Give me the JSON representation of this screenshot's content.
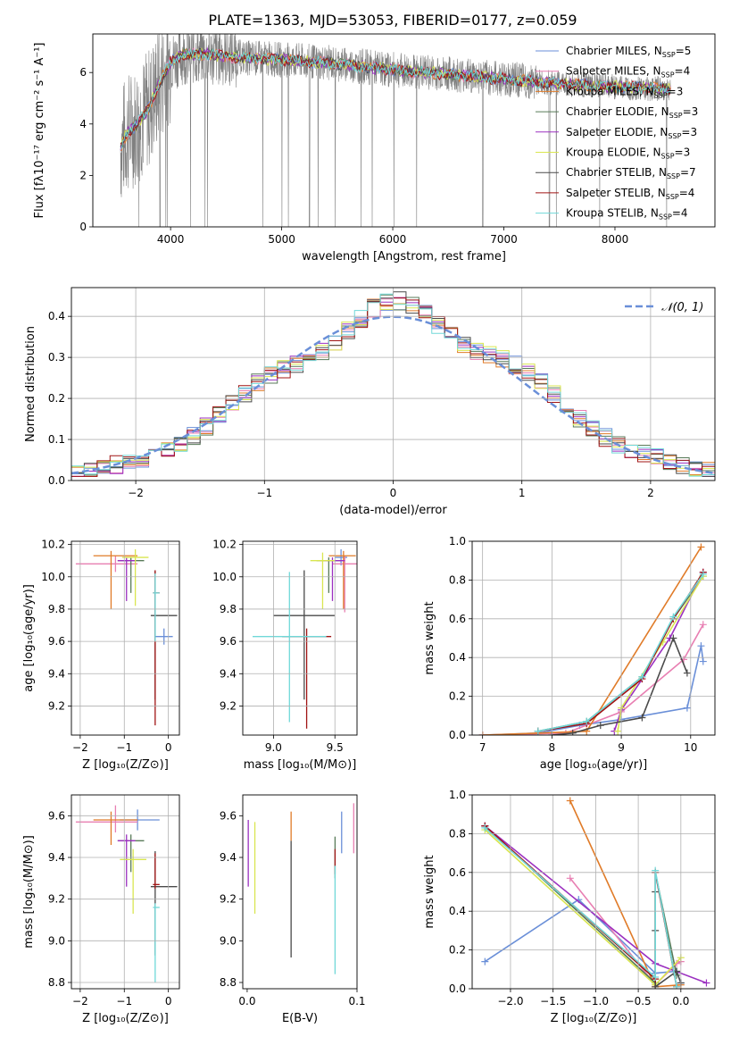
{
  "figure": {
    "title": "PLATE=1363, MJD=53053, FIBERID=0177, z=0.059"
  },
  "colors": {
    "Chabrier MILES": "#6a8fd8",
    "Salpeter MILES": "#e87fb2",
    "Kroupa MILES": "#e07b28",
    "Chabrier ELODIE": "#587a58",
    "Salpeter ELODIE": "#9b30c0",
    "Kroupa ELODIE": "#d9e650",
    "Chabrier STELIB": "#4a4a4a",
    "Salpeter STELIB": "#a01414",
    "Kroupa STELIB": "#70d8d8",
    "data": "#808080",
    "gaussian": "#6a8fd8"
  },
  "chart_data": [
    {
      "id": "spectrum",
      "type": "line",
      "xlabel": "wavelength [Angstrom, rest frame]",
      "ylabel": "Flux [fλ10⁻¹⁷ erg cm⁻² s⁻¹ A⁻¹]",
      "xlim": [
        3300,
        8900
      ],
      "ylim": [
        0,
        7.5
      ],
      "xticks": [
        4000,
        5000,
        6000,
        7000,
        8000
      ],
      "yticks": [
        0,
        2,
        4,
        6
      ],
      "legend_position": "top-right",
      "legend": [
        {
          "label": "Chabrier MILES, N",
          "sub": "SSP",
          "eq": "=5"
        },
        {
          "label": "Salpeter MILES, N",
          "sub": "SSP",
          "eq": "=4"
        },
        {
          "label": "Kroupa MILES, N",
          "sub": "SSP",
          "eq": "=3"
        },
        {
          "label": "Chabrier ELODIE, N",
          "sub": "SSP",
          "eq": "=3"
        },
        {
          "label": "Salpeter ELODIE, N",
          "sub": "SSP",
          "eq": "=3"
        },
        {
          "label": "Kroupa ELODIE, N",
          "sub": "SSP",
          "eq": "=3"
        },
        {
          "label": "Chabrier STELIB, N",
          "sub": "SSP",
          "eq": "=7"
        },
        {
          "label": "Salpeter STELIB, N",
          "sub": "SSP",
          "eq": "=4"
        },
        {
          "label": "Kroupa STELIB, N",
          "sub": "SSP",
          "eq": "=4"
        }
      ],
      "model_continuum": [
        [
          3550,
          3.1
        ],
        [
          3600,
          3.6
        ],
        [
          3700,
          4.0
        ],
        [
          3800,
          4.6
        ],
        [
          3900,
          5.6
        ],
        [
          4000,
          6.4
        ],
        [
          4100,
          6.7
        ],
        [
          4300,
          6.7
        ],
        [
          4600,
          6.6
        ],
        [
          5000,
          6.5
        ],
        [
          5500,
          6.35
        ],
        [
          6000,
          6.1
        ],
        [
          6500,
          5.95
        ],
        [
          7000,
          5.75
        ],
        [
          7400,
          5.6
        ],
        [
          8000,
          5.45
        ],
        [
          8500,
          5.35
        ]
      ],
      "data_range": [
        3550,
        8500
      ]
    },
    {
      "id": "residuals",
      "type": "histogram",
      "xlabel": "(data-model)/error",
      "ylabel": "Normed distribution",
      "xlim": [
        -2.5,
        2.5
      ],
      "ylim": [
        0,
        0.47
      ],
      "xticks": [
        -2,
        -1,
        0,
        1,
        2
      ],
      "yticks": [
        0.0,
        0.1,
        0.2,
        0.3,
        0.4
      ],
      "grid": true,
      "legend_position": "top-right",
      "gaussian_label": "𝒩(0, 1)",
      "bin_width": 0.1
    },
    {
      "id": "age-vs-Z",
      "type": "errorbar",
      "xlabel": "Z [log₁₀(Z/Z⊙)]",
      "ylabel": "age  [log₁₀(age/yr)]",
      "xlim": [
        -2.2,
        0.25
      ],
      "ylim": [
        9.02,
        10.22
      ],
      "xticks": [
        -2,
        -1,
        0
      ],
      "yticks": [
        9.2,
        9.4,
        9.6,
        9.8,
        10.0,
        10.2
      ],
      "grid": true,
      "points": [
        {
          "model": "Chabrier MILES",
          "x": -0.1,
          "xerr": [
            0.2,
            0.2
          ],
          "y": 9.63,
          "yerr": [
            0.05,
            0.05
          ]
        },
        {
          "model": "Salpeter MILES",
          "x": -1.2,
          "xerr": [
            0.9,
            0.5
          ],
          "y": 10.08,
          "yerr": [
            0.05,
            0.05
          ]
        },
        {
          "model": "Kroupa MILES",
          "x": -1.3,
          "xerr": [
            0.4,
            0.6
          ],
          "y": 10.13,
          "yerr": [
            0.33,
            0.03
          ]
        },
        {
          "model": "Chabrier ELODIE",
          "x": -0.85,
          "xerr": [
            0.3,
            0.3
          ],
          "y": 10.1,
          "yerr": [
            0.2,
            0.02
          ]
        },
        {
          "model": "Salpeter ELODIE",
          "x": -0.95,
          "xerr": [
            0.2,
            0.2
          ],
          "y": 10.1,
          "yerr": [
            0.25,
            0.02
          ]
        },
        {
          "model": "Kroupa ELODIE",
          "x": -0.75,
          "xerr": [
            0.3,
            0.3
          ],
          "y": 10.12,
          "yerr": [
            0.3,
            0.05
          ]
        },
        {
          "model": "Chabrier STELIB",
          "x": -0.3,
          "xerr": [
            0.1,
            0.5
          ],
          "y": 9.76,
          "yerr": [
            0.52,
            0.28
          ]
        },
        {
          "model": "Salpeter STELIB",
          "x": -0.3,
          "xerr": [
            0.05,
            0.1
          ],
          "y": 9.9,
          "yerr": [
            0.82,
            0.14
          ]
        },
        {
          "model": "Kroupa STELIB",
          "x": -0.3,
          "xerr": [
            0.05,
            0.1
          ],
          "y": 9.9,
          "yerr": [
            0.3,
            0.12
          ]
        }
      ]
    },
    {
      "id": "age-vs-mass",
      "type": "errorbar",
      "xlabel": "mass [log₁₀(M/M⊙)]",
      "ylabel": "",
      "xlim": [
        8.75,
        9.68
      ],
      "ylim": [
        9.02,
        10.22
      ],
      "xticks": [
        9.0,
        9.5
      ],
      "yticks": [
        9.2,
        9.4,
        9.6,
        9.8,
        10.0,
        10.2
      ],
      "grid": true,
      "points": [
        {
          "model": "Chabrier MILES",
          "x": 9.55,
          "xerr": [
            0.05,
            0.05
          ],
          "y": 10.12,
          "yerr": [
            0.05,
            0.05
          ]
        },
        {
          "model": "Salpeter MILES",
          "x": 9.58,
          "xerr": [
            0.1,
            0.1
          ],
          "y": 10.08,
          "yerr": [
            0.3,
            0.05
          ]
        },
        {
          "model": "Kroupa MILES",
          "x": 9.57,
          "xerr": [
            0.12,
            0.1
          ],
          "y": 10.13,
          "yerr": [
            0.33,
            0.03
          ]
        },
        {
          "model": "Chabrier ELODIE",
          "x": 9.45,
          "xerr": [
            0.1,
            0.1
          ],
          "y": 10.1,
          "yerr": [
            0.2,
            0.02
          ]
        },
        {
          "model": "Salpeter ELODIE",
          "x": 9.48,
          "xerr": [
            0.1,
            0.1
          ],
          "y": 10.1,
          "yerr": [
            0.25,
            0.02
          ]
        },
        {
          "model": "Kroupa ELODIE",
          "x": 9.4,
          "xerr": [
            0.1,
            0.1
          ],
          "y": 10.1,
          "yerr": [
            0.3,
            0.05
          ]
        },
        {
          "model": "Chabrier STELIB",
          "x": 9.25,
          "xerr": [
            0.25,
            0.25
          ],
          "y": 9.76,
          "yerr": [
            0.52,
            0.28
          ]
        },
        {
          "model": "Salpeter STELIB",
          "x": 9.27,
          "xerr": [
            0.2,
            0.2
          ],
          "y": 9.63,
          "yerr": [
            0.57,
            0.05
          ]
        },
        {
          "model": "Kroupa STELIB",
          "x": 9.13,
          "xerr": [
            0.3,
            0.3
          ],
          "y": 9.63,
          "yerr": [
            0.53,
            0.4
          ]
        }
      ]
    },
    {
      "id": "massweight-vs-age",
      "type": "line",
      "xlabel": "age  [log₁₀(age/yr)]",
      "ylabel": "mass weight",
      "xlim": [
        6.85,
        10.35
      ],
      "ylim": [
        0,
        1
      ],
      "xticks": [
        7,
        8,
        9,
        10
      ],
      "yticks": [
        0.0,
        0.2,
        0.4,
        0.6,
        0.8,
        1.0
      ],
      "grid": true,
      "series": [
        {
          "model": "Chabrier MILES",
          "x": [
            7.0,
            7.8,
            8.4,
            9.0,
            9.95,
            10.15,
            10.18
          ],
          "y": [
            0.0,
            0.01,
            0.05,
            0.08,
            0.14,
            0.46,
            0.38
          ]
        },
        {
          "model": "Salpeter MILES",
          "x": [
            7.0,
            8.2,
            9.0,
            9.9,
            10.18
          ],
          "y": [
            0.0,
            0.01,
            0.12,
            0.39,
            0.57
          ]
        },
        {
          "model": "Kroupa MILES",
          "x": [
            7.0,
            7.8,
            8.5,
            10.15
          ],
          "y": [
            0.0,
            0.01,
            0.02,
            0.97
          ]
        },
        {
          "model": "Chabrier ELODIE",
          "x": [
            7.8,
            8.5,
            9.3,
            9.75,
            10.18
          ],
          "y": [
            0.02,
            0.07,
            0.3,
            0.6,
            0.82
          ]
        },
        {
          "model": "Salpeter ELODIE",
          "x": [
            8.9,
            9.0,
            9.7,
            10.18
          ],
          "y": [
            0.02,
            0.13,
            0.5,
            0.84
          ]
        },
        {
          "model": "Kroupa ELODIE",
          "x": [
            8.95,
            9.0,
            9.6,
            10.18
          ],
          "y": [
            0.02,
            0.14,
            0.48,
            0.82
          ]
        },
        {
          "model": "Chabrier STELIB",
          "x": [
            8.0,
            8.3,
            8.7,
            9.3,
            9.75,
            9.95
          ],
          "y": [
            0.0,
            0.01,
            0.05,
            0.09,
            0.5,
            0.32
          ]
        },
        {
          "model": "Salpeter STELIB",
          "x": [
            7.8,
            8.5,
            9.3,
            9.75,
            10.18
          ],
          "y": [
            0.02,
            0.06,
            0.29,
            0.6,
            0.84
          ]
        },
        {
          "model": "Kroupa STELIB",
          "x": [
            7.8,
            8.5,
            9.3,
            9.75,
            10.18
          ],
          "y": [
            0.02,
            0.07,
            0.3,
            0.61,
            0.83
          ]
        }
      ]
    },
    {
      "id": "mass-vs-Z",
      "type": "errorbar",
      "xlabel": "Z [log₁₀(Z/Z⊙)]",
      "ylabel": "mass [log₁₀(M/M⊙)]",
      "xlim": [
        -2.2,
        0.25
      ],
      "ylim": [
        8.77,
        9.7
      ],
      "xticks": [
        -2,
        -1,
        0
      ],
      "yticks": [
        8.8,
        9.0,
        9.2,
        9.4,
        9.6
      ],
      "grid": true,
      "points": [
        {
          "model": "Chabrier MILES",
          "x": -0.7,
          "xerr": [
            0.4,
            0.5
          ],
          "y": 9.58,
          "yerr": [
            0.05,
            0.05
          ]
        },
        {
          "model": "Salpeter MILES",
          "x": -1.2,
          "xerr": [
            0.9,
            0.5
          ],
          "y": 9.57,
          "yerr": [
            0.05,
            0.08
          ]
        },
        {
          "model": "Kroupa MILES",
          "x": -1.3,
          "xerr": [
            0.4,
            0.6
          ],
          "y": 9.58,
          "yerr": [
            0.12,
            0.04
          ]
        },
        {
          "model": "Chabrier ELODIE",
          "x": -0.85,
          "xerr": [
            0.3,
            0.3
          ],
          "y": 9.48,
          "yerr": [
            0.15,
            0.03
          ]
        },
        {
          "model": "Salpeter ELODIE",
          "x": -0.95,
          "xerr": [
            0.2,
            0.2
          ],
          "y": 9.48,
          "yerr": [
            0.22,
            0.03
          ]
        },
        {
          "model": "Kroupa ELODIE",
          "x": -0.8,
          "xerr": [
            0.3,
            0.3
          ],
          "y": 9.39,
          "yerr": [
            0.26,
            0.05
          ]
        },
        {
          "model": "Chabrier STELIB",
          "x": -0.3,
          "xerr": [
            0.1,
            0.5
          ],
          "y": 9.26,
          "yerr": [
            0.33,
            0.17
          ]
        },
        {
          "model": "Salpeter STELIB",
          "x": -0.3,
          "xerr": [
            0.05,
            0.1
          ],
          "y": 9.27,
          "yerr": [
            0.02,
            0.15
          ]
        },
        {
          "model": "Kroupa STELIB",
          "x": -0.3,
          "xerr": [
            0.05,
            0.1
          ],
          "y": 9.16,
          "yerr": [
            0.36,
            0.02
          ]
        }
      ]
    },
    {
      "id": "mass-vs-ebv",
      "type": "errorbar",
      "xlabel": "E(B-V)",
      "ylabel": "",
      "xlim": [
        -0.004,
        0.1
      ],
      "ylim": [
        8.77,
        9.7
      ],
      "xticks": [
        0.0,
        0.1
      ],
      "yticks": [
        8.8,
        9.0,
        9.2,
        9.4,
        9.6
      ],
      "grid": false,
      "points": [
        {
          "model": "Chabrier MILES",
          "x": 0.086,
          "xerr": [
            0,
            0
          ],
          "y": 9.52,
          "yerr": [
            0.1,
            0.1
          ]
        },
        {
          "model": "Salpeter MILES",
          "x": 0.097,
          "xerr": [
            0,
            0
          ],
          "y": 9.54,
          "yerr": [
            0.12,
            0.12
          ]
        },
        {
          "model": "Kroupa MILES",
          "x": 0.04,
          "xerr": [
            0,
            0
          ],
          "y": 9.55,
          "yerr": [
            0.07,
            0.07
          ]
        },
        {
          "model": "Chabrier ELODIE",
          "x": 0.08,
          "xerr": [
            0,
            0
          ],
          "y": 9.4,
          "yerr": [
            0.1,
            0.1
          ]
        },
        {
          "model": "Salpeter ELODIE",
          "x": 0.001,
          "xerr": [
            0,
            0
          ],
          "y": 9.42,
          "yerr": [
            0.16,
            0.16
          ]
        },
        {
          "model": "Kroupa ELODIE",
          "x": 0.007,
          "xerr": [
            0,
            0
          ],
          "y": 9.35,
          "yerr": [
            0.22,
            0.22
          ]
        },
        {
          "model": "Chabrier STELIB",
          "x": 0.04,
          "xerr": [
            0,
            0
          ],
          "y": 9.2,
          "yerr": [
            0.28,
            0.28
          ]
        },
        {
          "model": "Salpeter STELIB",
          "x": 0.08,
          "xerr": [
            0,
            0
          ],
          "y": 9.38,
          "yerr": [
            0.06,
            0.06
          ]
        },
        {
          "model": "Kroupa STELIB",
          "x": 0.08,
          "xerr": [
            0,
            0
          ],
          "y": 9.1,
          "yerr": [
            0.26,
            0.26
          ]
        }
      ]
    },
    {
      "id": "massweight-vs-Z",
      "type": "line",
      "xlabel": "Z [log₁₀(Z/Z⊙)]",
      "ylabel": "mass weight",
      "xlim": [
        -2.45,
        0.4
      ],
      "ylim": [
        0,
        1
      ],
      "xticks": [
        -2.0,
        -1.5,
        -1.0,
        -0.5,
        0.0
      ],
      "yticks": [
        0.0,
        0.2,
        0.4,
        0.6,
        0.8,
        1.0
      ],
      "grid": true,
      "series": [
        {
          "model": "Chabrier MILES",
          "x": [
            -2.3,
            -1.2,
            -0.3,
            -0.05,
            0.0
          ],
          "y": [
            0.14,
            0.46,
            0.08,
            0.09,
            0.03
          ]
        },
        {
          "model": "Salpeter MILES",
          "x": [
            -1.3,
            -0.3,
            -0.05,
            0.0
          ],
          "y": [
            0.57,
            0.02,
            0.13,
            0.14
          ]
        },
        {
          "model": "Kroupa MILES",
          "x": [
            -1.3,
            -0.3,
            0.0
          ],
          "y": [
            0.97,
            0.01,
            0.02
          ]
        },
        {
          "model": "Chabrier ELODIE",
          "x": [
            -2.3,
            -0.3,
            -0.3,
            -0.05
          ],
          "y": [
            0.84,
            0.03,
            0.6,
            0.07
          ]
        },
        {
          "model": "Salpeter ELODIE",
          "x": [
            -2.3,
            -0.3,
            0.3
          ],
          "y": [
            0.84,
            0.13,
            0.03
          ]
        },
        {
          "model": "Kroupa ELODIE",
          "x": [
            -2.3,
            -0.3,
            0.0
          ],
          "y": [
            0.82,
            0.02,
            0.16
          ]
        },
        {
          "model": "Chabrier STELIB",
          "x": [
            -0.3,
            -0.3,
            -0.3,
            -0.05,
            0.0
          ],
          "y": [
            0.5,
            0.3,
            0.01,
            0.09,
            0.03
          ]
        },
        {
          "model": "Salpeter STELIB",
          "x": [
            -2.3,
            -0.3,
            -0.3,
            -0.05
          ],
          "y": [
            0.84,
            0.05,
            0.6,
            0.01
          ]
        },
        {
          "model": "Kroupa STELIB",
          "x": [
            -2.3,
            -0.3,
            -0.3,
            -0.05
          ],
          "y": [
            0.83,
            0.06,
            0.61,
            0.01
          ]
        }
      ]
    }
  ]
}
